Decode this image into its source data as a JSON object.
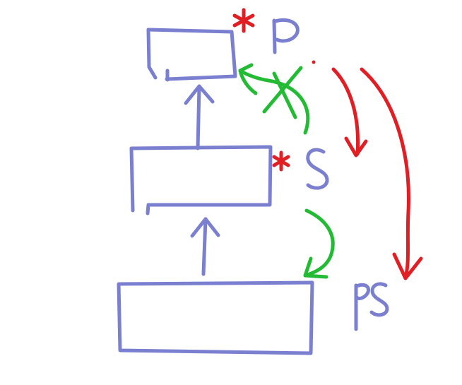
{
  "diagram": {
    "colors": {
      "ink": "#7b7fd0",
      "green": "#22bb33",
      "red": "#e01e24",
      "background": "#ffffff"
    },
    "boxes": [
      {
        "id": "p",
        "label": "P",
        "starred": true
      },
      {
        "id": "s",
        "label": "S",
        "starred": true
      },
      {
        "id": "ps",
        "label": "PS",
        "starred": false
      }
    ]
  }
}
